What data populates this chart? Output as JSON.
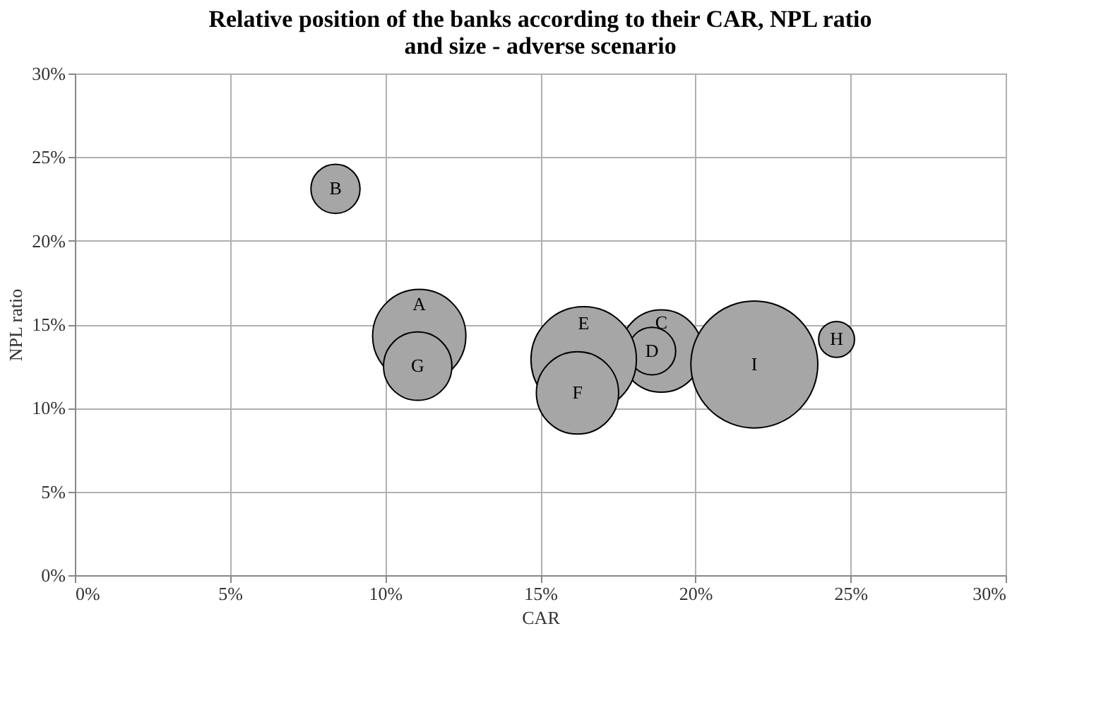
{
  "chart_data": {
    "type": "bubble",
    "title": "Relative position of the banks according to their CAR, NPL ratio and size - adverse scenario",
    "xlabel": "CAR",
    "ylabel": "NPL ratio",
    "x": [
      11.1,
      8.4,
      18.9,
      18.6,
      16.4,
      16.2,
      11.05,
      24.55,
      21.9
    ],
    "values": [
      14.3,
      23.1,
      13.4,
      13.4,
      12.9,
      10.9,
      12.5,
      14.1,
      12.6
    ],
    "sizes": [
      0.54,
      0.15,
      0.42,
      0.14,
      0.69,
      0.42,
      0.29,
      0.08,
      1
    ],
    "color": "#a6a6a6",
    "annotations": [
      {
        "text": "A",
        "x": 11.1,
        "y": 14.3
      },
      {
        "text": "B",
        "x": 8.4,
        "y": 23.1
      },
      {
        "text": "C",
        "x": 18.9,
        "y": 13.4
      },
      {
        "text": "D",
        "x": 18.6,
        "y": 13.4
      },
      {
        "text": "E",
        "x": 16.4,
        "y": 12.9
      },
      {
        "text": "F",
        "x": 16.2,
        "y": 10.9
      },
      {
        "text": "G",
        "x": 11.05,
        "y": 12.5
      },
      {
        "text": "H",
        "x": 24.55,
        "y": 14.1
      },
      {
        "text": "I",
        "x": 21.9,
        "y": 12.6
      }
    ],
    "xlim": [
      0,
      30
    ],
    "ylim": [
      0,
      30
    ],
    "xticks": [
      {
        "value": 0,
        "label": "0%"
      },
      {
        "value": 5,
        "label": "5%"
      },
      {
        "value": 10,
        "label": "10%"
      },
      {
        "value": 15,
        "label": "15%"
      },
      {
        "value": 20,
        "label": "20%"
      },
      {
        "value": 25,
        "label": "25%"
      },
      {
        "value": 30,
        "label": "30%"
      }
    ],
    "yticks": [
      {
        "value": 0,
        "label": "0%"
      },
      {
        "value": 5,
        "label": "5%"
      },
      {
        "value": 10,
        "label": "10%"
      },
      {
        "value": 15,
        "label": "15%"
      },
      {
        "value": 20,
        "label": "20%"
      },
      {
        "value": 25,
        "label": "25%"
      },
      {
        "value": 30,
        "label": "30%"
      }
    ],
    "grid": true
  }
}
